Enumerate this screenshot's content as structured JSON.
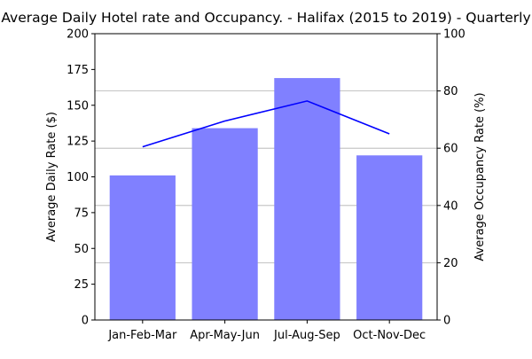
{
  "chart_data": {
    "type": "bar",
    "title": "Average Daily Hotel rate and Occupancy. - Halifax (2015 to 2019) - Quarterly",
    "categories": [
      "Jan-Feb-Mar",
      "Apr-May-Jun",
      "Jul-Aug-Sep",
      "Oct-Nov-Dec"
    ],
    "ylabel": "Average Daily Rate ($)",
    "ylabel_right": "Average Occupancy Rate (%)",
    "ylim": [
      0,
      200
    ],
    "ylim_right": [
      0,
      100
    ],
    "yticks": [
      "0",
      "25",
      "50",
      "75",
      "100",
      "125",
      "150",
      "175",
      "200"
    ],
    "yticks_right": [
      "0",
      "20",
      "40",
      "60",
      "80",
      "100"
    ],
    "grid": "horizontal lines at right-axis ticks",
    "series": [
      {
        "type": "bar",
        "axis": "left",
        "color": "#8080ff",
        "values": [
          101,
          134,
          169,
          115
        ]
      },
      {
        "type": "line",
        "axis": "right",
        "color": "#0000ff",
        "values": [
          60.5,
          69.5,
          76.5,
          65
        ]
      }
    ]
  }
}
